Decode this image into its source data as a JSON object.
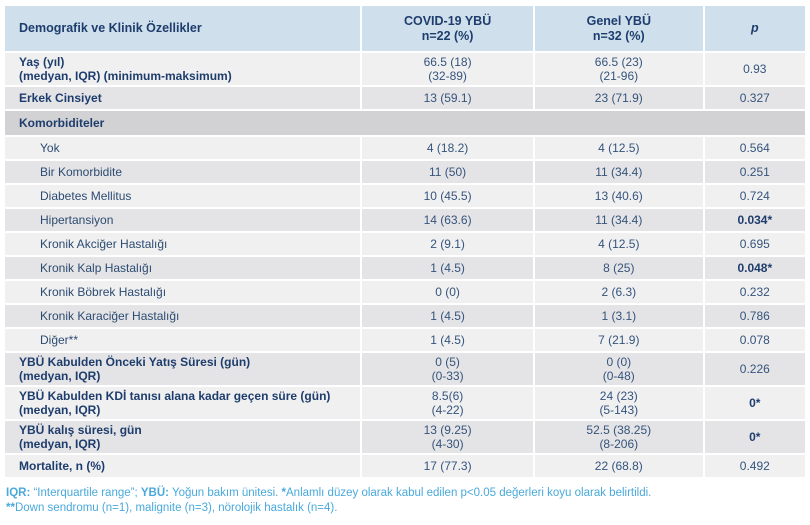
{
  "header": {
    "col1": "Demografik ve Klinik Özellikler",
    "col2": [
      "COVID-19 YBÜ",
      "n=22 (%)"
    ],
    "col3": [
      "Genel YBÜ",
      "n=32 (%)"
    ],
    "col4": "p"
  },
  "rows": [
    {
      "label": [
        "Yaş (yıl)",
        "(medyan, IQR) (minimum-maksimum)"
      ],
      "strong": true,
      "indent": false,
      "covid": [
        "66.5 (18)",
        "(32-89)"
      ],
      "genel": [
        "66.5 (23)",
        "(21-96)"
      ],
      "p": "0.93",
      "p_strong": false
    },
    {
      "label": [
        "Erkek Cinsiyet"
      ],
      "strong": true,
      "indent": false,
      "covid": [
        "13 (59.1)"
      ],
      "genel": [
        "23 (71.9)"
      ],
      "p": "0.327",
      "p_strong": false
    },
    {
      "section": true,
      "label": [
        "Komorbiditeler"
      ]
    },
    {
      "label": [
        "Yok"
      ],
      "strong": false,
      "indent": true,
      "covid": [
        "4 (18.2)"
      ],
      "genel": [
        "4 (12.5)"
      ],
      "p": "0.564",
      "p_strong": false
    },
    {
      "label": [
        "Bir Komorbidite"
      ],
      "strong": false,
      "indent": true,
      "covid": [
        "11 (50)"
      ],
      "genel": [
        "11 (34.4)"
      ],
      "p": "0.251",
      "p_strong": false
    },
    {
      "label": [
        "Diabetes Mellitus"
      ],
      "strong": false,
      "indent": true,
      "covid": [
        "10 (45.5)"
      ],
      "genel": [
        "13 (40.6)"
      ],
      "p": "0.724",
      "p_strong": false
    },
    {
      "label": [
        "Hipertansiyon"
      ],
      "strong": false,
      "indent": true,
      "covid": [
        "14 (63.6)"
      ],
      "genel": [
        "11 (34.4)"
      ],
      "p": "0.034*",
      "p_strong": true
    },
    {
      "label": [
        "Kronik Akciğer Hastalığı"
      ],
      "strong": false,
      "indent": true,
      "covid": [
        "2 (9.1)"
      ],
      "genel": [
        "4 (12.5)"
      ],
      "p": "0.695",
      "p_strong": false
    },
    {
      "label": [
        "Kronik Kalp Hastalığı"
      ],
      "strong": false,
      "indent": true,
      "covid": [
        "1 (4.5)"
      ],
      "genel": [
        "8 (25)"
      ],
      "p": "0.048*",
      "p_strong": true
    },
    {
      "label": [
        "Kronik Böbrek Hastalığı"
      ],
      "strong": false,
      "indent": true,
      "covid": [
        "0 (0)"
      ],
      "genel": [
        "2 (6.3)"
      ],
      "p": "0.232",
      "p_strong": false
    },
    {
      "label": [
        "Kronik Karaciğer Hastalığı"
      ],
      "strong": false,
      "indent": true,
      "covid": [
        "1 (4.5)"
      ],
      "genel": [
        "1 (3.1)"
      ],
      "p": "0.786",
      "p_strong": false
    },
    {
      "label": [
        "Diğer**"
      ],
      "strong": false,
      "indent": true,
      "covid": [
        "1 (4.5)"
      ],
      "genel": [
        "7 (21.9)"
      ],
      "p": "0.078",
      "p_strong": false
    },
    {
      "label": [
        "YBÜ Kabulden Önceki Yatış Süresi (gün)",
        "(medyan, IQR)"
      ],
      "strong": true,
      "indent": false,
      "covid": [
        "0 (5)",
        "(0-33)"
      ],
      "genel": [
        "0 (0)",
        "(0-48)"
      ],
      "p": "0.226",
      "p_strong": false
    },
    {
      "label": [
        "YBÜ Kabulden KDİ tanısı alana kadar geçen süre (gün)",
        "(medyan, IQR)"
      ],
      "strong": true,
      "indent": false,
      "covid": [
        "8.5(6)",
        "(4-22)"
      ],
      "genel": [
        "24 (23)",
        "(5-143)"
      ],
      "p": "0*",
      "p_strong": true
    },
    {
      "label": [
        "YBÜ kalış süresi, gün",
        "(medyan, IQR)"
      ],
      "strong": true,
      "indent": false,
      "covid": [
        "13 (9.25)",
        "(4-30)"
      ],
      "genel": [
        "52.5 (38.25)",
        "(8-206)"
      ],
      "p": "0*",
      "p_strong": true
    },
    {
      "label": [
        "Mortalite, n (%)"
      ],
      "strong": true,
      "indent": false,
      "covid": [
        "17 (77.3)"
      ],
      "genel": [
        "22 (68.8)"
      ],
      "p": "0.492",
      "p_strong": false
    }
  ],
  "footnotes": [
    {
      "segments": [
        {
          "t": "IQR:",
          "b": true
        },
        {
          "t": " “Interquartile range”; ",
          "b": false
        },
        {
          "t": "YBÜ:",
          "b": true
        },
        {
          "t": " Yoğun bakım ünitesi. ",
          "b": false
        },
        {
          "t": "*",
          "b": true
        },
        {
          "t": "Anlamlı düzey olarak kabul edilen p<0.05  değerleri koyu olarak belirtildi.",
          "b": false
        }
      ]
    },
    {
      "segments": [
        {
          "t": "**",
          "b": true
        },
        {
          "t": "Down sendromu (n=1), malignite (n=3), nörolojik hastalık (n=4).",
          "b": false
        }
      ]
    }
  ],
  "colors": {
    "header_bg": "#cfe0ec",
    "row_light": "#f0f0f1",
    "row_dark": "#e4e4e6",
    "section_bg": "#d2d2d4",
    "text_navy": "#1e3d6d",
    "text_body": "#35547c",
    "footnote_blue": "#49a9db"
  }
}
